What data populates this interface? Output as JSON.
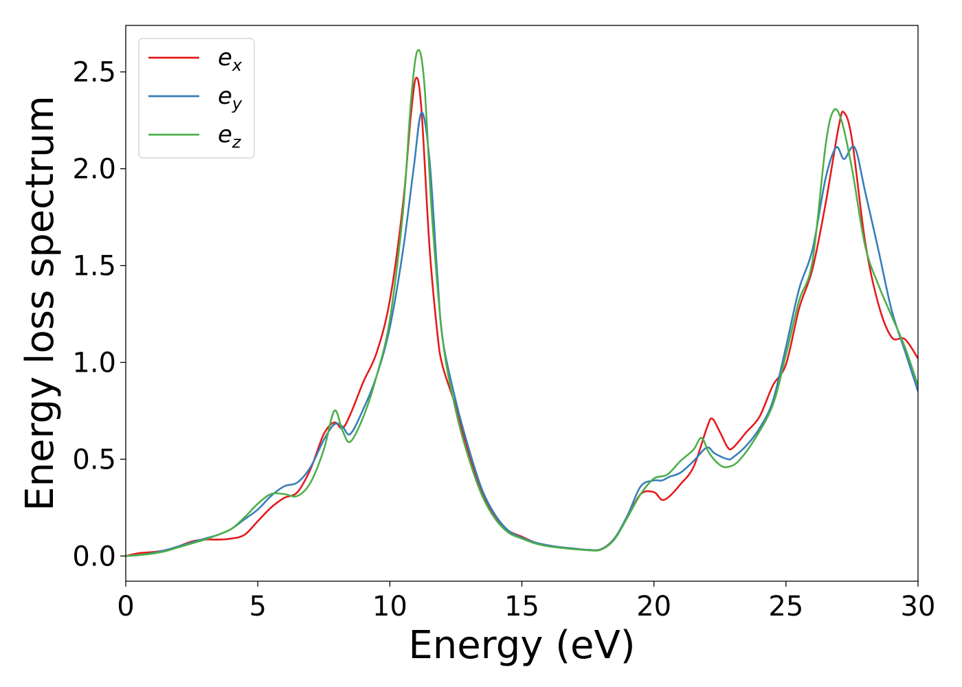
{
  "chart_data": {
    "type": "line",
    "title": "",
    "xlabel": "Energy (eV)",
    "ylabel": "Energy loss spectrum",
    "xlim": [
      0,
      30
    ],
    "ylim": [
      -0.13,
      2.74
    ],
    "xticks": [
      0,
      5,
      10,
      15,
      20,
      25,
      30
    ],
    "xtick_labels": [
      "0",
      "5",
      "10",
      "15",
      "20",
      "25",
      "30"
    ],
    "yticks": [
      0.0,
      0.5,
      1.0,
      1.5,
      2.0,
      2.5
    ],
    "ytick_labels": [
      "0.0",
      "0.5",
      "1.0",
      "1.5",
      "2.0",
      "2.5"
    ],
    "grid": false,
    "legend_position": "top-left",
    "series": [
      {
        "name": "e_x",
        "label_base": "e",
        "label_sub": "x",
        "color": "#e41a1c",
        "points": [
          [
            0,
            0
          ],
          [
            0.5,
            0.015
          ],
          [
            1,
            0.02
          ],
          [
            1.5,
            0.03
          ],
          [
            2,
            0.05
          ],
          [
            2.5,
            0.075
          ],
          [
            3,
            0.085
          ],
          [
            3.5,
            0.085
          ],
          [
            4,
            0.09
          ],
          [
            4.5,
            0.11
          ],
          [
            5,
            0.18
          ],
          [
            5.5,
            0.25
          ],
          [
            6,
            0.3
          ],
          [
            6.5,
            0.33
          ],
          [
            7,
            0.45
          ],
          [
            7.5,
            0.63
          ],
          [
            7.9,
            0.69
          ],
          [
            8.2,
            0.66
          ],
          [
            8.5,
            0.73
          ],
          [
            9,
            0.9
          ],
          [
            9.5,
            1.05
          ],
          [
            10,
            1.32
          ],
          [
            10.5,
            1.82
          ],
          [
            10.8,
            2.28
          ],
          [
            11.0,
            2.47
          ],
          [
            11.2,
            2.3
          ],
          [
            11.5,
            1.6
          ],
          [
            11.8,
            1.15
          ],
          [
            12,
            0.98
          ],
          [
            12.5,
            0.77
          ],
          [
            13,
            0.52
          ],
          [
            13.5,
            0.32
          ],
          [
            14,
            0.2
          ],
          [
            14.5,
            0.13
          ],
          [
            15,
            0.1
          ],
          [
            15.5,
            0.07
          ],
          [
            16,
            0.055
          ],
          [
            16.5,
            0.045
          ],
          [
            17,
            0.038
          ],
          [
            17.5,
            0.032
          ],
          [
            18,
            0.035
          ],
          [
            18.5,
            0.09
          ],
          [
            19,
            0.2
          ],
          [
            19.5,
            0.32
          ],
          [
            20,
            0.33
          ],
          [
            20.3,
            0.29
          ],
          [
            20.6,
            0.31
          ],
          [
            21,
            0.37
          ],
          [
            21.5,
            0.46
          ],
          [
            22,
            0.66
          ],
          [
            22.2,
            0.71
          ],
          [
            22.5,
            0.64
          ],
          [
            22.8,
            0.56
          ],
          [
            23,
            0.56
          ],
          [
            23.5,
            0.64
          ],
          [
            24,
            0.72
          ],
          [
            24.5,
            0.88
          ],
          [
            25,
            0.99
          ],
          [
            25.5,
            1.28
          ],
          [
            26,
            1.48
          ],
          [
            26.5,
            1.82
          ],
          [
            27,
            2.22
          ],
          [
            27.2,
            2.29
          ],
          [
            27.5,
            2.15
          ],
          [
            28,
            1.62
          ],
          [
            28.5,
            1.3
          ],
          [
            29,
            1.13
          ],
          [
            29.5,
            1.12
          ],
          [
            30,
            1.02
          ]
        ]
      },
      {
        "name": "e_y",
        "label_base": "e",
        "label_sub": "y",
        "color": "#377eb8",
        "points": [
          [
            0,
            0
          ],
          [
            0.5,
            0.005
          ],
          [
            1,
            0.015
          ],
          [
            1.5,
            0.03
          ],
          [
            2,
            0.05
          ],
          [
            2.5,
            0.07
          ],
          [
            3,
            0.09
          ],
          [
            3.5,
            0.11
          ],
          [
            4,
            0.14
          ],
          [
            4.5,
            0.19
          ],
          [
            5,
            0.24
          ],
          [
            5.5,
            0.31
          ],
          [
            6,
            0.36
          ],
          [
            6.5,
            0.38
          ],
          [
            7,
            0.46
          ],
          [
            7.5,
            0.6
          ],
          [
            7.9,
            0.68
          ],
          [
            8.2,
            0.67
          ],
          [
            8.5,
            0.63
          ],
          [
            9,
            0.76
          ],
          [
            9.5,
            0.93
          ],
          [
            10,
            1.18
          ],
          [
            10.5,
            1.58
          ],
          [
            10.9,
            2.0
          ],
          [
            11.2,
            2.29
          ],
          [
            11.5,
            2.05
          ],
          [
            11.8,
            1.45
          ],
          [
            12,
            1.12
          ],
          [
            12.5,
            0.8
          ],
          [
            13,
            0.55
          ],
          [
            13.5,
            0.34
          ],
          [
            14,
            0.21
          ],
          [
            14.5,
            0.13
          ],
          [
            15,
            0.095
          ],
          [
            15.5,
            0.07
          ],
          [
            16,
            0.055
          ],
          [
            16.5,
            0.045
          ],
          [
            17,
            0.038
          ],
          [
            17.5,
            0.032
          ],
          [
            18,
            0.035
          ],
          [
            18.5,
            0.09
          ],
          [
            19,
            0.21
          ],
          [
            19.5,
            0.36
          ],
          [
            20,
            0.39
          ],
          [
            20.3,
            0.39
          ],
          [
            20.6,
            0.41
          ],
          [
            21,
            0.43
          ],
          [
            21.5,
            0.49
          ],
          [
            22,
            0.56
          ],
          [
            22.3,
            0.53
          ],
          [
            22.8,
            0.5
          ],
          [
            23,
            0.51
          ],
          [
            23.5,
            0.57
          ],
          [
            24,
            0.66
          ],
          [
            24.5,
            0.8
          ],
          [
            25,
            1.08
          ],
          [
            25.5,
            1.38
          ],
          [
            26,
            1.58
          ],
          [
            26.5,
            1.95
          ],
          [
            26.9,
            2.11
          ],
          [
            27.2,
            2.05
          ],
          [
            27.6,
            2.11
          ],
          [
            28,
            1.88
          ],
          [
            28.5,
            1.58
          ],
          [
            29,
            1.27
          ],
          [
            29.5,
            1.06
          ],
          [
            30,
            0.85
          ]
        ]
      },
      {
        "name": "e_z",
        "label_base": "e",
        "label_sub": "z",
        "color": "#4daf4a",
        "points": [
          [
            0,
            0
          ],
          [
            0.5,
            0.005
          ],
          [
            1,
            0.012
          ],
          [
            1.5,
            0.025
          ],
          [
            2,
            0.045
          ],
          [
            2.5,
            0.065
          ],
          [
            3,
            0.085
          ],
          [
            3.5,
            0.11
          ],
          [
            4,
            0.14
          ],
          [
            4.5,
            0.2
          ],
          [
            5,
            0.27
          ],
          [
            5.5,
            0.32
          ],
          [
            6,
            0.32
          ],
          [
            6.5,
            0.31
          ],
          [
            7,
            0.38
          ],
          [
            7.5,
            0.55
          ],
          [
            7.9,
            0.75
          ],
          [
            8.2,
            0.65
          ],
          [
            8.5,
            0.59
          ],
          [
            9,
            0.72
          ],
          [
            9.5,
            0.93
          ],
          [
            10,
            1.22
          ],
          [
            10.5,
            1.78
          ],
          [
            10.8,
            2.35
          ],
          [
            11.05,
            2.61
          ],
          [
            11.3,
            2.45
          ],
          [
            11.6,
            1.75
          ],
          [
            12,
            1.12
          ],
          [
            12.5,
            0.75
          ],
          [
            13,
            0.5
          ],
          [
            13.5,
            0.31
          ],
          [
            14,
            0.19
          ],
          [
            14.5,
            0.12
          ],
          [
            15,
            0.09
          ],
          [
            15.5,
            0.065
          ],
          [
            16,
            0.05
          ],
          [
            16.5,
            0.042
          ],
          [
            17,
            0.035
          ],
          [
            17.5,
            0.03
          ],
          [
            18,
            0.033
          ],
          [
            18.5,
            0.085
          ],
          [
            19,
            0.2
          ],
          [
            19.5,
            0.32
          ],
          [
            20,
            0.4
          ],
          [
            20.5,
            0.42
          ],
          [
            21,
            0.49
          ],
          [
            21.5,
            0.55
          ],
          [
            21.8,
            0.61
          ],
          [
            22.1,
            0.53
          ],
          [
            22.5,
            0.47
          ],
          [
            22.8,
            0.46
          ],
          [
            23.2,
            0.49
          ],
          [
            23.8,
            0.6
          ],
          [
            24.5,
            0.78
          ],
          [
            25,
            1.04
          ],
          [
            25.5,
            1.32
          ],
          [
            26,
            1.52
          ],
          [
            26.5,
            2.12
          ],
          [
            26.8,
            2.3
          ],
          [
            27.1,
            2.25
          ],
          [
            27.5,
            2.0
          ],
          [
            28,
            1.6
          ],
          [
            28.5,
            1.4
          ],
          [
            29,
            1.24
          ],
          [
            29.5,
            1.08
          ],
          [
            30,
            0.88
          ]
        ]
      }
    ]
  }
}
